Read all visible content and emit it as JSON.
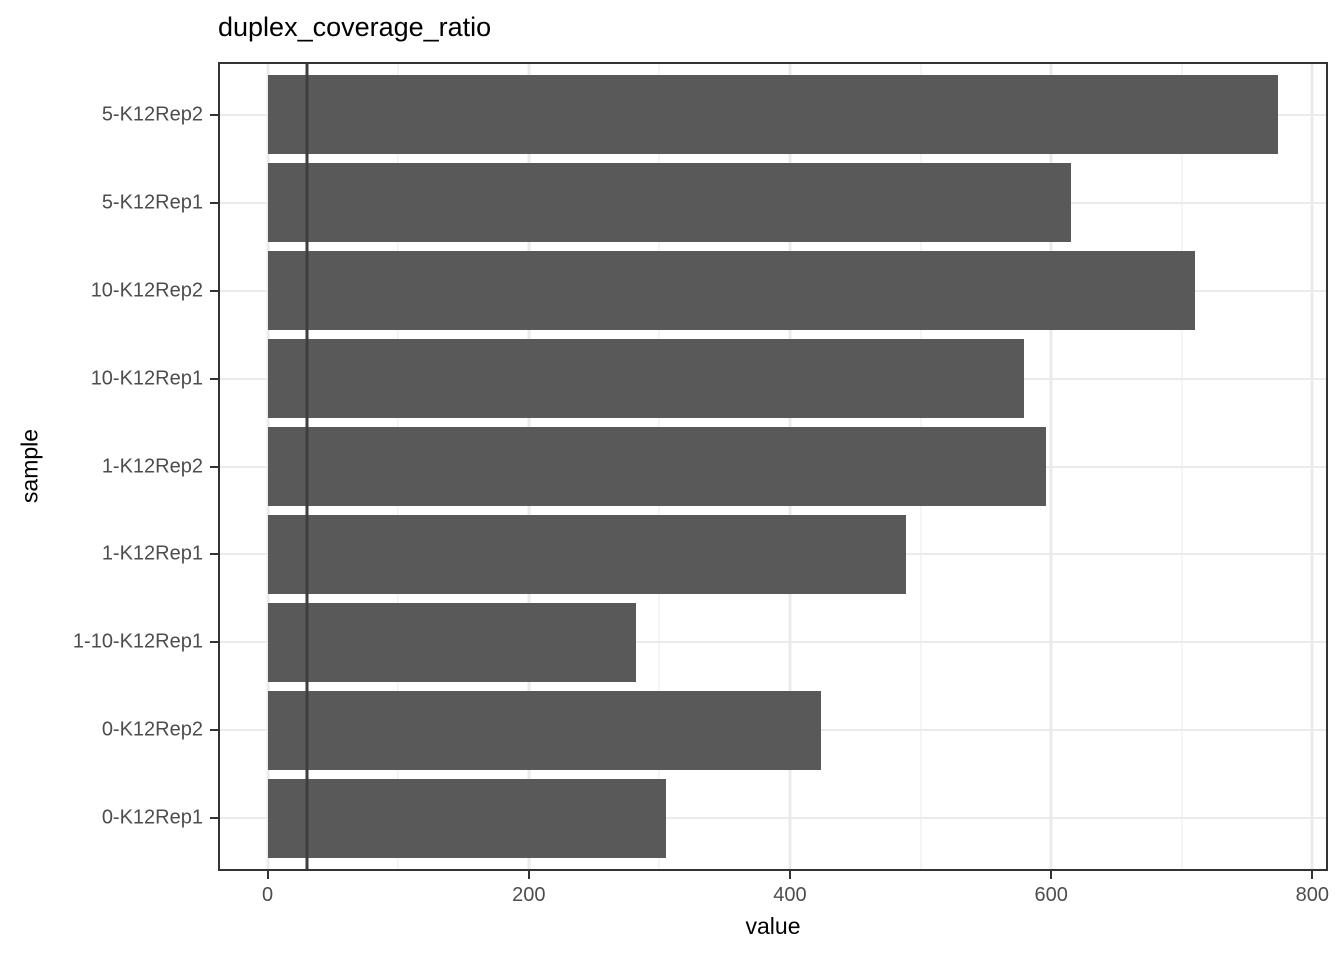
{
  "chart_data": {
    "type": "bar",
    "orientation": "horizontal",
    "title": "duplex_coverage_ratio",
    "xlabel": "value",
    "ylabel": "sample",
    "categories": [
      "5-K12Rep2",
      "5-K12Rep1",
      "10-K12Rep2",
      "10-K12Rep1",
      "1-K12Rep2",
      "1-K12Rep1",
      "1-10-K12Rep1",
      "0-K12Rep2",
      "0-K12Rep1"
    ],
    "values": [
      774,
      615,
      710,
      579,
      596,
      489,
      282,
      424,
      305
    ],
    "xlim": [
      -38,
      812
    ],
    "x_major_ticks": [
      0,
      200,
      400,
      600,
      800
    ],
    "x_minor_ticks": [
      100,
      300,
      500,
      700
    ],
    "x_tick_labels": [
      "0",
      "200",
      "400",
      "600",
      "800"
    ],
    "reference_line_x": 30,
    "grid": true,
    "legend_position": "none",
    "colors": {
      "bar": "#595959",
      "reference_line": "#3e3e3e",
      "grid_major": "#ebebeb",
      "grid_minor": "#f5f5f5",
      "panel_border": "#333333",
      "tick_text": "#4d4d4d",
      "title_text": "#000000"
    }
  }
}
